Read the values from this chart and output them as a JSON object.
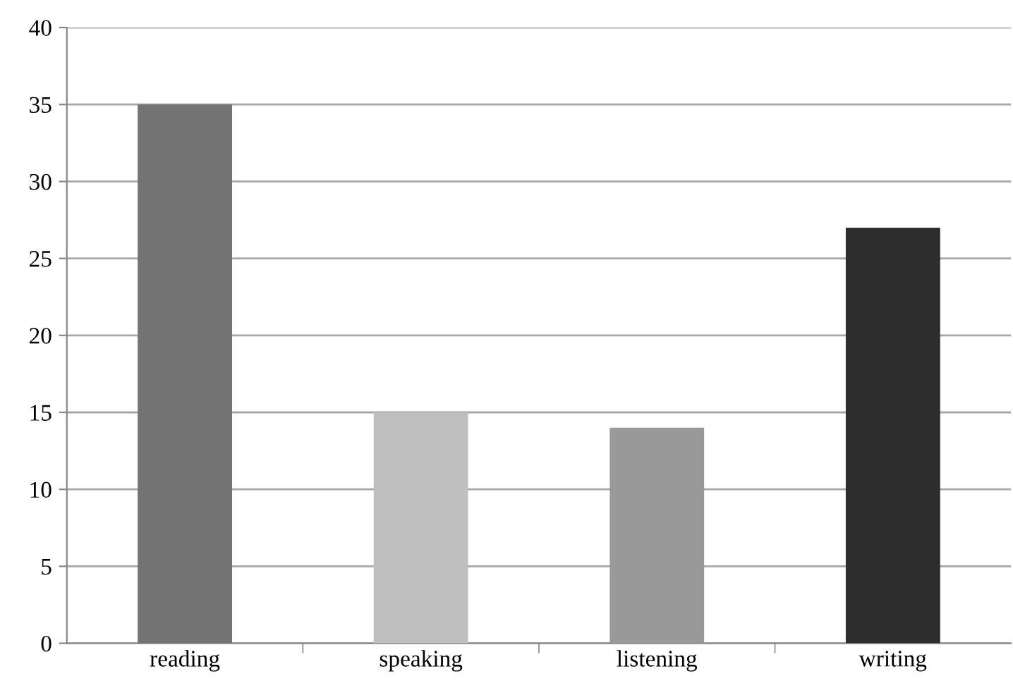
{
  "chart_data": {
    "type": "bar",
    "categories": [
      "reading",
      "speaking",
      "listening",
      "writing"
    ],
    "values": [
      35,
      15,
      14,
      27
    ],
    "colors": [
      "#737373",
      "#bfbfbf",
      "#999999",
      "#2d2d2d"
    ],
    "ylim": [
      0,
      40
    ],
    "yticks": [
      0,
      5,
      10,
      15,
      20,
      25,
      30,
      35,
      40
    ],
    "grid": "y",
    "legend": false
  }
}
